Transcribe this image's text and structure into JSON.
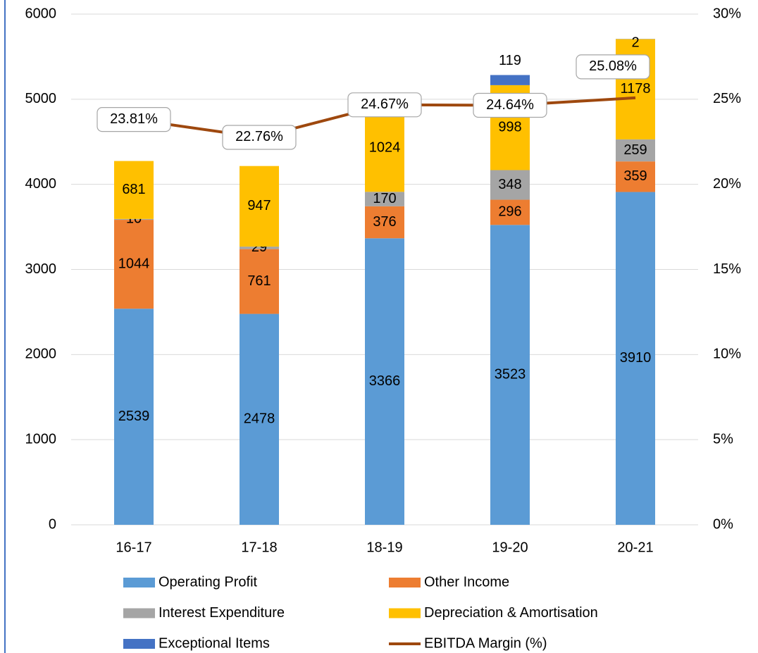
{
  "chart_data": {
    "type": "bar",
    "stacked": true,
    "categories": [
      "16-17",
      "17-18",
      "18-19",
      "19-20",
      "20-21"
    ],
    "series": [
      {
        "name": "Operating Profit",
        "color": "#5b9bd5",
        "values": [
          2539,
          2478,
          3366,
          3523,
          3910
        ]
      },
      {
        "name": "Other Income",
        "color": "#ed7d31",
        "values": [
          1044,
          761,
          376,
          296,
          359
        ]
      },
      {
        "name": "Interest Expenditure",
        "color": "#a5a5a5",
        "values": [
          10,
          29,
          170,
          348,
          259
        ]
      },
      {
        "name": "Depreciation & Amortisation",
        "color": "#ffc000",
        "values": [
          681,
          947,
          1024,
          998,
          1178
        ]
      },
      {
        "name": "Exceptional Items",
        "color": "#4472c4",
        "values": [
          null,
          null,
          null,
          119,
          2
        ]
      },
      {
        "name": "EBITDA Margin (%)",
        "color": "#9e480e",
        "type": "line",
        "axis": "y2",
        "values": [
          23.81,
          22.76,
          24.67,
          24.64,
          25.08
        ],
        "value_labels": [
          "23.81%",
          "22.76%",
          "24.67%",
          "24.64%",
          "25.08%"
        ]
      }
    ],
    "ylim": [
      0,
      6000
    ],
    "yticks": [
      0,
      1000,
      2000,
      3000,
      4000,
      5000,
      6000
    ],
    "y2lim": [
      0,
      30
    ],
    "y2ticks": [
      {
        "value": 0,
        "label": "0%"
      },
      {
        "value": 5,
        "label": "5%"
      },
      {
        "value": 10,
        "label": "10%"
      },
      {
        "value": 15,
        "label": "15%"
      },
      {
        "value": 20,
        "label": "20%"
      },
      {
        "value": 25,
        "label": "25%"
      },
      {
        "value": 30,
        "label": "30%"
      }
    ],
    "grid": true,
    "legend": "bottom"
  }
}
